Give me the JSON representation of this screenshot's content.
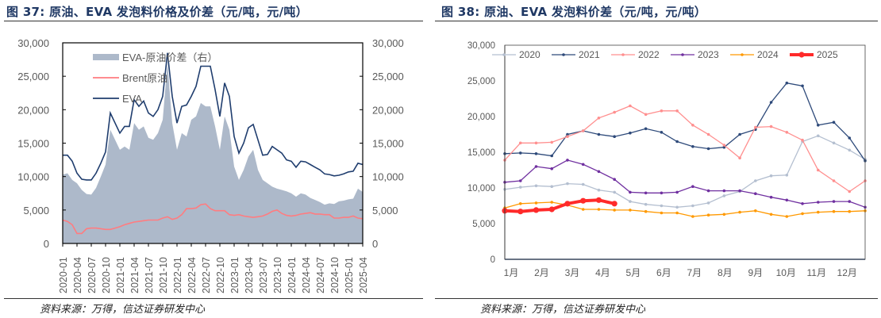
{
  "left": {
    "title": "图 37:  原油、EVA 发泡料价格及价差（元/吨，元/吨）",
    "source": "资料来源：万得，信达证券研发中心"
  },
  "right": {
    "title": "图 38:  原油、EVA 发泡料价差（元/吨，元/吨）",
    "source": "资料来源：万得，信达证券研发中心"
  },
  "chart_data": [
    {
      "type": "line",
      "title": "原油、EVA 发泡料价格及价差（元/吨，元/吨）",
      "ylim": [
        0,
        30000
      ],
      "y2lim": [
        0,
        30000
      ],
      "yticks": [
        "0",
        "5,000",
        "10,000",
        "15,000",
        "20,000",
        "25,000",
        "30,000"
      ],
      "y2ticks": [
        "0",
        "5,000",
        "10,000",
        "15,000",
        "20,000",
        "25,000",
        "30,000"
      ],
      "xticks": [
        "2020-01",
        "2020-04",
        "2020-07",
        "2020-10",
        "2021-01",
        "2021-04",
        "2021-07",
        "2021-10",
        "2022-01",
        "2022-04",
        "2022-07",
        "2022-10",
        "2023-01",
        "2023-04",
        "2023-07",
        "2023-10",
        "2024-01",
        "2024-04",
        "2024-07",
        "2024-10",
        "2025-01",
        "2025-04"
      ],
      "x_start": "2020-01",
      "x_frequency": "monthly",
      "legend_position": "top-left",
      "series": [
        {
          "name": "EVA-原油价差（右）",
          "kind": "area",
          "axis": "right",
          "color": "#adb9ca",
          "values": [
            10300,
            10500,
            9500,
            9000,
            8000,
            7400,
            7300,
            8300,
            10000,
            11800,
            17000,
            15500,
            14000,
            14500,
            14000,
            18000,
            17000,
            17500,
            15800,
            15500,
            16500,
            18500,
            27000,
            18000,
            14000,
            16500,
            16000,
            18500,
            19000,
            21000,
            20500,
            20500,
            17500,
            14000,
            19000,
            17000,
            11500,
            9500,
            11000,
            13000,
            14000,
            11000,
            9500,
            9000,
            8500,
            8200,
            8000,
            7800,
            7500,
            7000,
            7500,
            7300,
            6800,
            6500,
            6200,
            5800,
            6000,
            5900,
            6300,
            6400,
            6600,
            6700,
            8200,
            7700
          ]
        },
        {
          "name": "Brent原油",
          "kind": "line",
          "axis": "left",
          "color": "#ff7c80",
          "values": [
            3500,
            3300,
            2800,
            1500,
            1500,
            2200,
            2300,
            2300,
            2200,
            2100,
            2100,
            2300,
            2500,
            2800,
            3000,
            3200,
            3300,
            3400,
            3500,
            3500,
            3500,
            3800,
            4000,
            3600,
            3800,
            4300,
            5200,
            5200,
            5300,
            5800,
            5900,
            5200,
            4900,
            4900,
            4900,
            4300,
            4200,
            4300,
            4100,
            4000,
            3900,
            4000,
            4100,
            4400,
            4800,
            5000,
            4500,
            4200,
            4100,
            4200,
            4400,
            4500,
            4600,
            4400,
            4400,
            4300,
            4300,
            3800,
            3800,
            3900,
            3900,
            4100,
            3800,
            3700
          ]
        },
        {
          "name": "EVA",
          "kind": "line",
          "axis": "left",
          "color": "#1f3d6e",
          "values": [
            13200,
            13200,
            12300,
            10500,
            9600,
            9500,
            9500,
            10500,
            12000,
            13700,
            19500,
            18000,
            16500,
            17500,
            17500,
            21500,
            20500,
            21300,
            19500,
            19000,
            20000,
            22000,
            28500,
            22000,
            18000,
            20500,
            20700,
            22000,
            23500,
            26500,
            26500,
            26500,
            23000,
            19000,
            24000,
            22000,
            16000,
            13500,
            15000,
            17300,
            17800,
            15500,
            13200,
            13300,
            14500,
            14000,
            13500,
            12500,
            12300,
            11400,
            12300,
            12200,
            11800,
            11400,
            11000,
            10400,
            10300,
            10100,
            10200,
            10400,
            10700,
            10800,
            12000,
            11800
          ]
        }
      ]
    },
    {
      "type": "line",
      "title": "原油、EVA 发泡料价差（元/吨，元/吨）",
      "ylim": [
        0,
        30000
      ],
      "yticks": [
        "0",
        "5,000",
        "10,000",
        "15,000",
        "20,000",
        "25,000",
        "30,000"
      ],
      "xticks": [
        "1月",
        "2月",
        "3月",
        "4月",
        "5月",
        "6月",
        "7月",
        "8月",
        "9月",
        "10月",
        "11月",
        "12月"
      ],
      "x_frequency": "semi-monthly",
      "legend_position": "top",
      "series": [
        {
          "name": "2020",
          "color": "#b4bfd0",
          "values": [
            9800,
            10100,
            10300,
            10200,
            10600,
            10500,
            9700,
            9400,
            8100,
            7700,
            7500,
            7300,
            7500,
            7900,
            8900,
            9500,
            11000,
            11700,
            11800,
            16500,
            17300,
            16300,
            15300,
            14000
          ]
        },
        {
          "name": "2021",
          "color": "#2e4a7a",
          "values": [
            14800,
            14900,
            14800,
            14500,
            17500,
            18000,
            17500,
            17200,
            17700,
            18300,
            17800,
            16500,
            15800,
            15500,
            15700,
            17500,
            18200,
            22000,
            24700,
            24300,
            18800,
            19200,
            17000,
            13800
          ]
        },
        {
          "name": "2022",
          "color": "#ff8f8f",
          "values": [
            13900,
            16300,
            16300,
            16400,
            17200,
            18000,
            19800,
            20600,
            21500,
            20300,
            20800,
            20800,
            18800,
            17500,
            16000,
            14200,
            18500,
            18600,
            17800,
            16700,
            12500,
            11000,
            9500,
            11000
          ]
        },
        {
          "name": "2023",
          "color": "#7030a0",
          "values": [
            10800,
            11000,
            13000,
            12700,
            13900,
            13300,
            12300,
            11200,
            9400,
            9300,
            9300,
            9400,
            10200,
            9600,
            9600,
            9600,
            9200,
            8700,
            8300,
            7800,
            8000,
            8100,
            8100,
            7300
          ]
        },
        {
          "name": "2024",
          "color": "#ff9900",
          "values": [
            7200,
            7800,
            7900,
            8000,
            7600,
            7000,
            7000,
            6900,
            6900,
            6700,
            6500,
            6500,
            6000,
            6200,
            6300,
            6600,
            6800,
            6300,
            6000,
            6400,
            6600,
            6700,
            6700,
            6800
          ]
        },
        {
          "name": "2025",
          "color": "#ff2a2a",
          "values": [
            6800,
            6700,
            6900,
            7000,
            7800,
            8200,
            8300,
            7800
          ]
        }
      ]
    }
  ]
}
